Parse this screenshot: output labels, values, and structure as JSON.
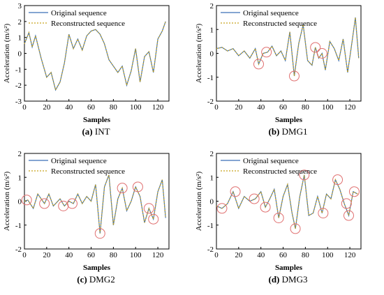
{
  "colors": {
    "original": "#3b6fb6",
    "reconstructed": "#c8a21a",
    "circle": "#e07070",
    "axis": "#000000"
  },
  "chart_data": [
    {
      "type": "line",
      "caption_letter": "(a)",
      "caption_name": "INT",
      "xlabel": "Samples",
      "ylabel": "Acceleration (m/s²)",
      "xlim": [
        0,
        130
      ],
      "ylim": [
        -3,
        3
      ],
      "xticks": [
        "0",
        "20",
        "40",
        "60",
        "80",
        "100",
        "120"
      ],
      "yticks": [
        "-3",
        "-2",
        "-1",
        "0",
        "1",
        "2",
        "3"
      ],
      "legend": "top-left",
      "series": [
        {
          "name": "Original sequence"
        },
        {
          "name": "Reconstructed sequence"
        }
      ],
      "x": [
        0,
        4,
        7,
        10,
        15,
        20,
        24,
        28,
        32,
        36,
        40,
        44,
        48,
        52,
        56,
        60,
        64,
        68,
        72,
        76,
        80,
        84,
        88,
        92,
        96,
        100,
        104,
        108,
        112,
        116,
        120,
        124,
        127
      ],
      "values": [
        0.6,
        1.3,
        0.4,
        1.1,
        -0.3,
        -1.5,
        -1.2,
        -2.3,
        -1.8,
        -0.6,
        1.2,
        0.3,
        0.9,
        0.2,
        1.1,
        1.4,
        1.5,
        1.2,
        0.6,
        -0.4,
        -0.8,
        -1.2,
        -0.8,
        -2.0,
        -1.1,
        0.3,
        -1.8,
        -0.2,
        0.1,
        -1.2,
        0.9,
        1.4,
        2.0
      ],
      "circles_x": []
    },
    {
      "type": "line",
      "caption_letter": "(b)",
      "caption_name": "DMG1",
      "xlabel": "Samples",
      "ylabel": "Acceleration (m/s²)",
      "xlim": [
        0,
        130
      ],
      "ylim": [
        -2,
        2
      ],
      "xticks": [
        "0",
        "20",
        "40",
        "60",
        "80",
        "100",
        "120"
      ],
      "yticks": [
        "-2",
        "-1",
        "0",
        "1",
        "2"
      ],
      "legend": "top-left",
      "series": [
        {
          "name": "Original sequence"
        },
        {
          "name": "Reconstructed sequence"
        }
      ],
      "x": [
        0,
        5,
        10,
        15,
        20,
        25,
        30,
        35,
        38,
        42,
        46,
        50,
        54,
        58,
        62,
        66,
        70,
        74,
        78,
        82,
        86,
        89,
        92,
        95,
        98,
        102,
        106,
        110,
        114,
        118,
        122,
        125,
        128
      ],
      "values": [
        0.2,
        0.25,
        0.1,
        0.2,
        -0.1,
        0.1,
        -0.2,
        0.2,
        -0.45,
        0.0,
        0.05,
        0.3,
        -0.1,
        0.1,
        -0.3,
        0.9,
        -0.95,
        0.4,
        1.2,
        -0.3,
        -0.5,
        0.25,
        -0.2,
        0.0,
        -0.7,
        0.5,
        0.2,
        -0.3,
        0.6,
        -0.8,
        0.5,
        1.5,
        -0.2
      ],
      "circles_x": [
        38,
        45,
        70,
        89,
        95
      ]
    },
    {
      "type": "line",
      "caption_letter": "(c)",
      "caption_name": "DMG2",
      "xlabel": "Samples",
      "ylabel": "Acceleration (m/s²)",
      "xlim": [
        0,
        130
      ],
      "ylim": [
        -2,
        2
      ],
      "xticks": [
        "0",
        "20",
        "40",
        "60",
        "80",
        "100",
        "120"
      ],
      "yticks": [
        "-2",
        "-1",
        "0",
        "1",
        "2"
      ],
      "legend": "top-left",
      "series": [
        {
          "name": "Original sequence"
        },
        {
          "name": "Reconstructed sequence"
        }
      ],
      "x": [
        0,
        3,
        8,
        12,
        18,
        22,
        26,
        32,
        36,
        40,
        44,
        48,
        52,
        56,
        60,
        64,
        68,
        72,
        76,
        80,
        84,
        88,
        92,
        96,
        100,
        104,
        108,
        112,
        116,
        120,
        124,
        127
      ],
      "values": [
        0.0,
        0.05,
        -0.3,
        0.3,
        -0.1,
        0.3,
        -0.2,
        0.1,
        -0.2,
        0.0,
        -0.1,
        0.3,
        -0.1,
        0.2,
        0.0,
        0.7,
        -1.35,
        0.6,
        1.1,
        -1.0,
        0.1,
        0.55,
        -0.4,
        0.0,
        0.6,
        0.2,
        -0.9,
        -0.3,
        -0.75,
        0.4,
        0.9,
        -0.7
      ],
      "circles_x": [
        2,
        18,
        35,
        43,
        68,
        88,
        102,
        112,
        116
      ]
    },
    {
      "type": "line",
      "caption_letter": "(d)",
      "caption_name": "DMG3",
      "xlabel": "Samples",
      "ylabel": "Acceleration (m/s²)",
      "xlim": [
        0,
        130
      ],
      "ylim": [
        -2,
        2
      ],
      "xticks": [
        "0",
        "20",
        "40",
        "60",
        "80",
        "100",
        "120"
      ],
      "yticks": [
        "-2",
        "-1",
        "0",
        "1",
        "2"
      ],
      "legend": "top-left",
      "series": [
        {
          "name": "Original sequence"
        },
        {
          "name": "Reconstructed sequence"
        }
      ],
      "x": [
        0,
        5,
        10,
        15,
        20,
        25,
        30,
        35,
        40,
        44,
        48,
        52,
        56,
        60,
        64,
        68,
        71,
        75,
        79,
        83,
        87,
        91,
        95,
        99,
        103,
        107,
        111,
        115,
        119,
        123,
        127
      ],
      "values": [
        -0.2,
        -0.3,
        -0.1,
        0.4,
        -0.3,
        0.2,
        0.0,
        0.1,
        0.4,
        -0.25,
        0.1,
        0.5,
        -0.7,
        0.2,
        0.7,
        -0.5,
        -1.15,
        0.2,
        1.1,
        -0.6,
        -0.5,
        0.2,
        -0.5,
        0.3,
        0.1,
        0.9,
        0.5,
        -0.1,
        -0.6,
        0.4,
        0.3
      ],
      "circles_x": [
        5,
        17,
        34,
        44,
        56,
        71,
        79,
        96,
        109,
        117,
        119,
        124
      ]
    }
  ]
}
